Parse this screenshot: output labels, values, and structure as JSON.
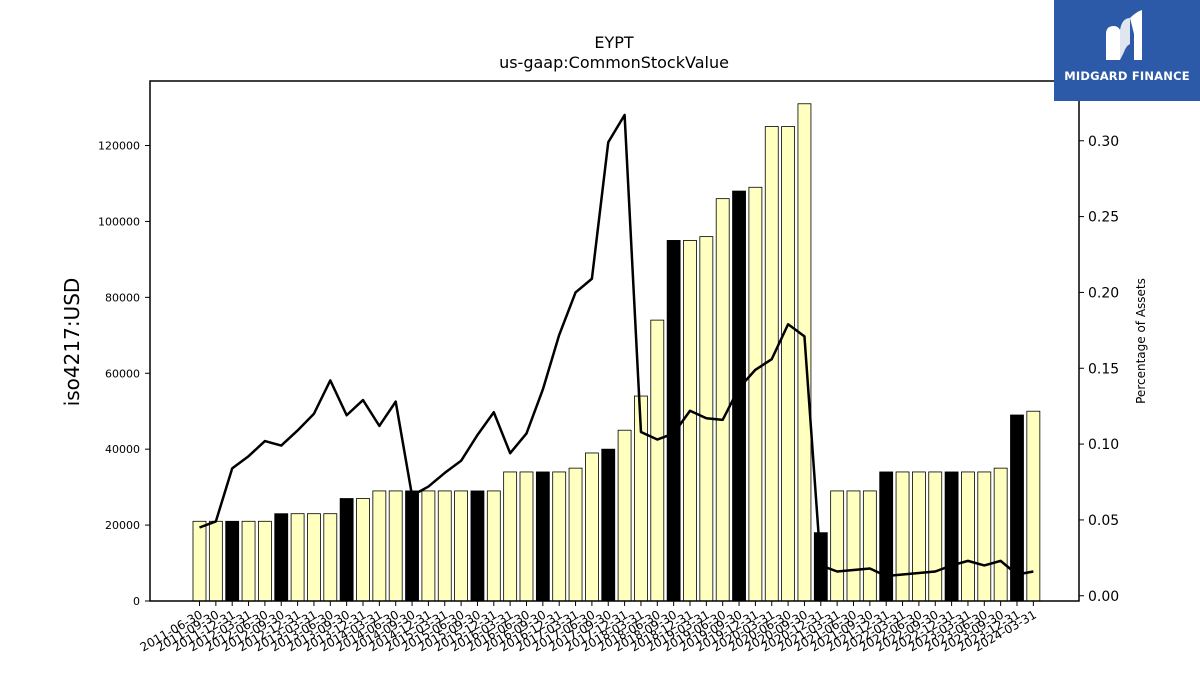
{
  "chart_data": {
    "type": "bar",
    "title": "EYPT",
    "subtitle": "us-gaap:CommonStockValue",
    "ylabel": "iso4217:USD",
    "y2label": "Percentage of Assets",
    "ylim": [
      0,
      137000
    ],
    "y2lim": [
      -0.00346,
      0.3394
    ],
    "yticks": [
      0,
      20000,
      40000,
      60000,
      80000,
      100000,
      120000
    ],
    "y2ticks": [
      0.0,
      0.05,
      0.1,
      0.15,
      0.2,
      0.25,
      0.3
    ],
    "y2tick_labels": [
      "0.00",
      "0.05",
      "0.10",
      "0.15",
      "0.20",
      "0.25",
      "0.30"
    ],
    "grid": false,
    "bar_colors": {
      "normal": "#ffffbf",
      "annual": "#000000",
      "edge": "#000000"
    },
    "line_color": "#000000",
    "categories": [
      "2011-06-30",
      "2011-09-30",
      "2011-12-31",
      "2012-03-31",
      "2012-06-30",
      "2012-09-30",
      "2012-12-31",
      "2013-03-31",
      "2013-06-30",
      "2013-09-30",
      "2013-12-31",
      "2014-03-31",
      "2014-06-30",
      "2014-09-30",
      "2014-12-31",
      "2015-03-31",
      "2015-06-30",
      "2015-09-30",
      "2015-12-31",
      "2016-03-31",
      "2016-06-30",
      "2016-09-30",
      "2016-12-31",
      "2017-03-31",
      "2017-06-30",
      "2017-09-30",
      "2017-12-31",
      "2018-03-31",
      "2018-06-30",
      "2018-09-30",
      "2018-12-31",
      "2019-03-31",
      "2019-06-30",
      "2019-09-30",
      "2019-12-31",
      "2020-03-31",
      "2020-06-30",
      "2020-09-30",
      "2020-12-31",
      "2021-03-31",
      "2021-06-30",
      "2021-09-30",
      "2021-12-31",
      "2022-03-31",
      "2022-06-30",
      "2022-09-30",
      "2022-12-31",
      "2023-03-31",
      "2023-06-30",
      "2023-09-30",
      "2023-12-31",
      "2024-03-31"
    ],
    "series": [
      {
        "type": "bar",
        "values": [
          21000,
          21000,
          21000,
          21000,
          21000,
          23000,
          23000,
          23000,
          23000,
          27000,
          27000,
          29000,
          29000,
          29000,
          29000,
          29000,
          29000,
          29000,
          29000,
          34000,
          34000,
          34000,
          34000,
          35000,
          39000,
          40000,
          45000,
          54000,
          74000,
          95000,
          95000,
          96000,
          106000,
          108000,
          109000,
          125000,
          125000,
          131000,
          18000,
          29000,
          29000,
          29000,
          34000,
          34000,
          34000,
          34000,
          34000,
          34000,
          34000,
          35000,
          49000,
          50000
        ],
        "highlight": [
          false,
          false,
          true,
          false,
          false,
          true,
          false,
          false,
          false,
          true,
          false,
          false,
          false,
          true,
          false,
          false,
          false,
          true,
          false,
          false,
          false,
          true,
          false,
          false,
          false,
          true,
          false,
          false,
          false,
          true,
          false,
          false,
          false,
          true,
          false,
          false,
          false,
          false,
          true,
          false,
          false,
          false,
          true,
          false,
          false,
          false,
          true,
          false,
          false,
          false,
          true,
          false
        ]
      },
      {
        "type": "line",
        "axis": "right",
        "values": [
          0.045,
          0.049,
          0.084,
          0.092,
          0.102,
          0.099,
          0.109,
          0.12,
          0.142,
          0.119,
          0.129,
          0.112,
          0.128,
          0.066,
          0.072,
          0.081,
          0.089,
          0.106,
          0.121,
          0.094,
          0.107,
          0.136,
          0.172,
          0.2,
          0.209,
          0.299,
          0.317,
          0.108,
          0.103,
          0.107,
          0.122,
          0.117,
          0.116,
          0.137,
          0.149,
          0.156,
          0.179,
          0.171,
          0.02,
          0.016,
          0.017,
          0.018,
          0.013,
          0.014,
          0.015,
          0.016,
          0.02,
          0.023,
          0.02,
          0.023,
          0.014,
          0.016
        ]
      }
    ]
  },
  "logo": {
    "name": "MIDGARD FINANCE",
    "icon": "midgard-m-icon",
    "background": "#2d5aa8"
  }
}
